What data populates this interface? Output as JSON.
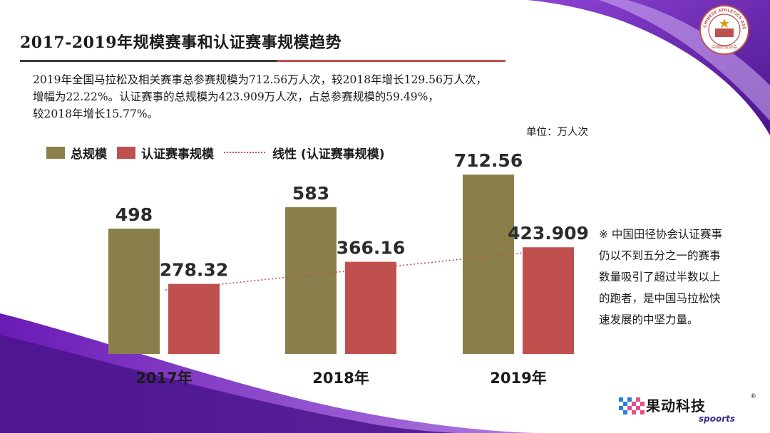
{
  "title": "2017-2019年规模赛事和认证赛事规模趋势",
  "summary_lines": [
    "2019年全国马拉松及相关赛事总参赛规模为712.56万人次，较2018年增长129.56万人次，",
    "增幅为22.22%。认证赛事的总规模为423.909万人次，占总参赛规模的59.49%，",
    "较2018年增长15.77%。"
  ],
  "unit_label": "单位：万人次",
  "legend": {
    "total": "总规模",
    "certified": "认证赛事规模",
    "trend": "线性 (认证赛事规模)"
  },
  "note_lines": [
    "※ 中国田径协会认证赛事",
    "仍以不到五分之一的赛事",
    "数量吸引了超过半数以上",
    "的跑者，是中国马拉松快",
    "速发展的中坚力量。"
  ],
  "logo": {
    "ring_text": "CHINESE ATHLETICS ASSOCIATION",
    "bottom_text": "中国田径协会"
  },
  "brand": {
    "name_cn": "果动科技",
    "name_en": "spoorts",
    "registered": "®"
  },
  "colors": {
    "total": "#8a7f4a",
    "certified": "#c0504d",
    "trend": "#c0504d",
    "accent_purple": "#5b1fa0"
  },
  "chart_data": {
    "type": "bar",
    "categories": [
      "2017年",
      "2018年",
      "2019年"
    ],
    "series": [
      {
        "name": "总规模",
        "values": [
          498,
          583,
          712.56
        ],
        "labels": [
          "498",
          "583",
          "712.56"
        ]
      },
      {
        "name": "认证赛事规模",
        "values": [
          278.32,
          366.16,
          423.909
        ],
        "labels": [
          "278.32",
          "366.16",
          "423.909"
        ]
      }
    ],
    "trendline": {
      "name": "线性 (认证赛事规模)",
      "of_series": "认证赛事规模",
      "style": "dotted"
    },
    "title": "",
    "xlabel": "",
    "ylabel": "",
    "ylim": [
      0,
      750
    ],
    "grid": false,
    "legend_position": "top-left"
  }
}
